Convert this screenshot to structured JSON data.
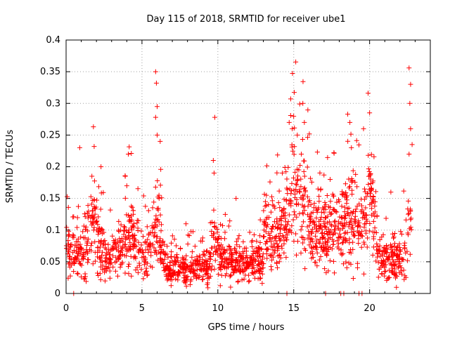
{
  "chart_data": {
    "type": "scatter",
    "title": "Day 115 of 2018, SRMTID for receiver ube1",
    "xlabel": "GPS time / hours",
    "ylabel": "SRMTID / TECUs",
    "xlim": [
      0,
      24
    ],
    "ylim": [
      0,
      0.4
    ],
    "x_ticks": [
      0,
      5,
      10,
      15,
      20
    ],
    "x_tick_labels": [
      "0",
      "5",
      "10",
      "15",
      "20"
    ],
    "y_ticks": [
      0,
      0.05,
      0.1,
      0.15,
      0.2,
      0.25,
      0.3,
      0.35,
      0.4
    ],
    "y_tick_labels": [
      "0",
      "0.05",
      "0.1",
      "0.15",
      "0.2",
      "0.25",
      "0.3",
      "0.35",
      "0.4"
    ],
    "grid": true,
    "marker": "+",
    "color": "#ff0000",
    "series": [
      {
        "name": "SRMTID",
        "points": [
          [
            0.9,
            0.23
          ],
          [
            1.8,
            0.263
          ],
          [
            1.85,
            0.232
          ],
          [
            2.3,
            0.2
          ],
          [
            4.1,
            0.22
          ],
          [
            4.3,
            0.221
          ],
          [
            5.9,
            0.35
          ],
          [
            5.95,
            0.332
          ],
          [
            6.0,
            0.295
          ],
          [
            5.9,
            0.278
          ],
          [
            6.2,
            0.24
          ],
          [
            6.0,
            0.25
          ],
          [
            9.7,
            0.21
          ],
          [
            9.8,
            0.278
          ],
          [
            9.75,
            0.19
          ],
          [
            14.8,
            0.307
          ],
          [
            14.7,
            0.27
          ],
          [
            14.9,
            0.26
          ],
          [
            15.6,
            0.3
          ],
          [
            15.7,
            0.27
          ],
          [
            15.5,
            0.22
          ],
          [
            18.7,
            0.27
          ],
          [
            18.8,
            0.23
          ],
          [
            19.9,
            0.316
          ],
          [
            20.0,
            0.285
          ],
          [
            19.6,
            0.26
          ],
          [
            22.6,
            0.356
          ],
          [
            22.7,
            0.33
          ],
          [
            22.65,
            0.3
          ],
          [
            22.7,
            0.26
          ],
          [
            22.8,
            0.235
          ],
          [
            22.6,
            0.22
          ],
          [
            1.7,
            0.185
          ],
          [
            3.9,
            0.185
          ],
          [
            4.0,
            0.17
          ],
          [
            7.9,
            0.11
          ],
          [
            11.2,
            0.15
          ],
          [
            13.2,
            0.155
          ],
          [
            16.6,
            0.165
          ],
          [
            17.4,
            0.18
          ],
          [
            20.2,
            0.175
          ],
          [
            21.4,
            0.16
          ],
          [
            14.55,
            0.0
          ],
          [
            17.1,
            0.0
          ],
          [
            18.1,
            0.0
          ],
          [
            18.3,
            0.0
          ],
          [
            19.3,
            0.0
          ],
          [
            19.5,
            0.0
          ],
          [
            0.5,
            0.0
          ]
        ]
      }
    ]
  }
}
